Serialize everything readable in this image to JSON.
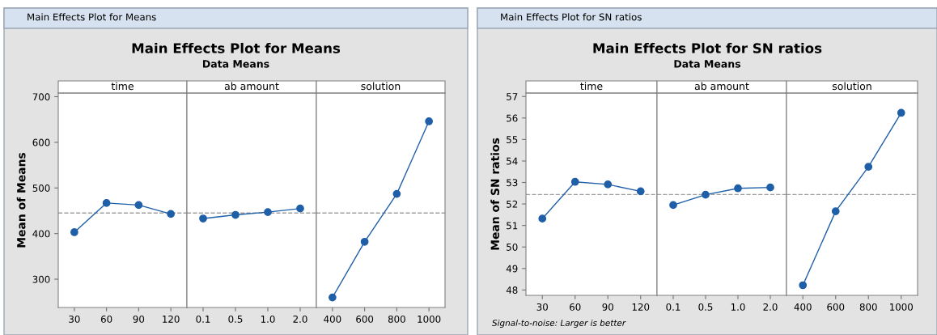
{
  "chart_data": [
    {
      "type": "line",
      "title": "time",
      "categories": [
        "30",
        "60",
        "90",
        "120"
      ],
      "ylabel": "Mean of Means",
      "ylim": [
        238,
        708
      ],
      "yticks": [
        300,
        400,
        500,
        600,
        700
      ],
      "marker": "circle",
      "grid": false,
      "legend": false,
      "series": [
        {
          "color": "#1f5fa8",
          "values": [
            403,
            467,
            462.5,
            443
          ]
        }
      ],
      "ref_lines": [
        {
          "axis": "y",
          "value": 445,
          "color": "#a0a0a0",
          "line_style": "dashed"
        }
      ],
      "annotations": [
        "Main Effects Plot for Means",
        "Main Effects Plot for Means",
        "Data Means"
      ]
    },
    {
      "type": "line",
      "title": "ab amount",
      "categories": [
        "0.1",
        "0.5",
        "1.0",
        "2.0"
      ],
      "ylim": [
        238,
        708
      ],
      "tick_labels": "x",
      "marker": "circle",
      "grid": false,
      "legend": false,
      "series": [
        {
          "color": "#1f5fa8",
          "values": [
            433,
            441,
            447,
            455
          ]
        }
      ],
      "ref_lines": [
        {
          "axis": "y",
          "value": 445,
          "color": "#a0a0a0",
          "line_style": "dashed"
        }
      ]
    },
    {
      "type": "line",
      "title": "solution",
      "categories": [
        "400",
        "600",
        "800",
        "1000"
      ],
      "ylim": [
        238,
        708
      ],
      "tick_labels": "x",
      "marker": "circle",
      "grid": false,
      "legend": false,
      "series": [
        {
          "color": "#1f5fa8",
          "values": [
            260,
            382,
            487,
            646
          ]
        }
      ],
      "ref_lines": [
        {
          "axis": "y",
          "value": 445,
          "color": "#a0a0a0",
          "line_style": "dashed"
        }
      ]
    },
    {
      "type": "line",
      "title": "time",
      "categories": [
        "30",
        "60",
        "90",
        "120"
      ],
      "ylabel": "Mean of SN ratios",
      "ylim": [
        47.75,
        57.16
      ],
      "yticks": [
        48,
        49,
        50,
        51,
        52,
        53,
        54,
        55,
        56,
        57
      ],
      "marker": "circle",
      "grid": false,
      "legend": false,
      "series": [
        {
          "color": "#1f5fa8",
          "values": [
            51.32,
            53.03,
            52.91,
            52.59
          ]
        }
      ],
      "ref_lines": [
        {
          "axis": "y",
          "value": 52.44,
          "color": "#a0a0a0",
          "line_style": "dashed"
        }
      ],
      "annotations": [
        "Main Effects Plot for SN ratios",
        "Main Effects Plot for SN ratios",
        "Data Means",
        "Signal-to-noise: Larger is better"
      ]
    },
    {
      "type": "line",
      "title": "ab amount",
      "categories": [
        "0.1",
        "0.5",
        "1.0",
        "2.0"
      ],
      "ylim": [
        47.75,
        57.16
      ],
      "tick_labels": "x",
      "marker": "circle",
      "grid": false,
      "legend": false,
      "series": [
        {
          "color": "#1f5fa8",
          "values": [
            51.95,
            52.43,
            52.73,
            52.77
          ]
        }
      ],
      "ref_lines": [
        {
          "axis": "y",
          "value": 52.44,
          "color": "#a0a0a0",
          "line_style": "dashed"
        }
      ]
    },
    {
      "type": "line",
      "title": "solution",
      "categories": [
        "400",
        "600",
        "800",
        "1000"
      ],
      "ylim": [
        47.75,
        57.16
      ],
      "tick_labels": "x",
      "marker": "circle",
      "grid": false,
      "legend": false,
      "series": [
        {
          "color": "#1f5fa8",
          "values": [
            48.22,
            51.66,
            53.73,
            56.24
          ]
        }
      ],
      "ref_lines": [
        {
          "axis": "y",
          "value": 52.44,
          "color": "#a0a0a0",
          "line_style": "dashed"
        }
      ]
    }
  ]
}
